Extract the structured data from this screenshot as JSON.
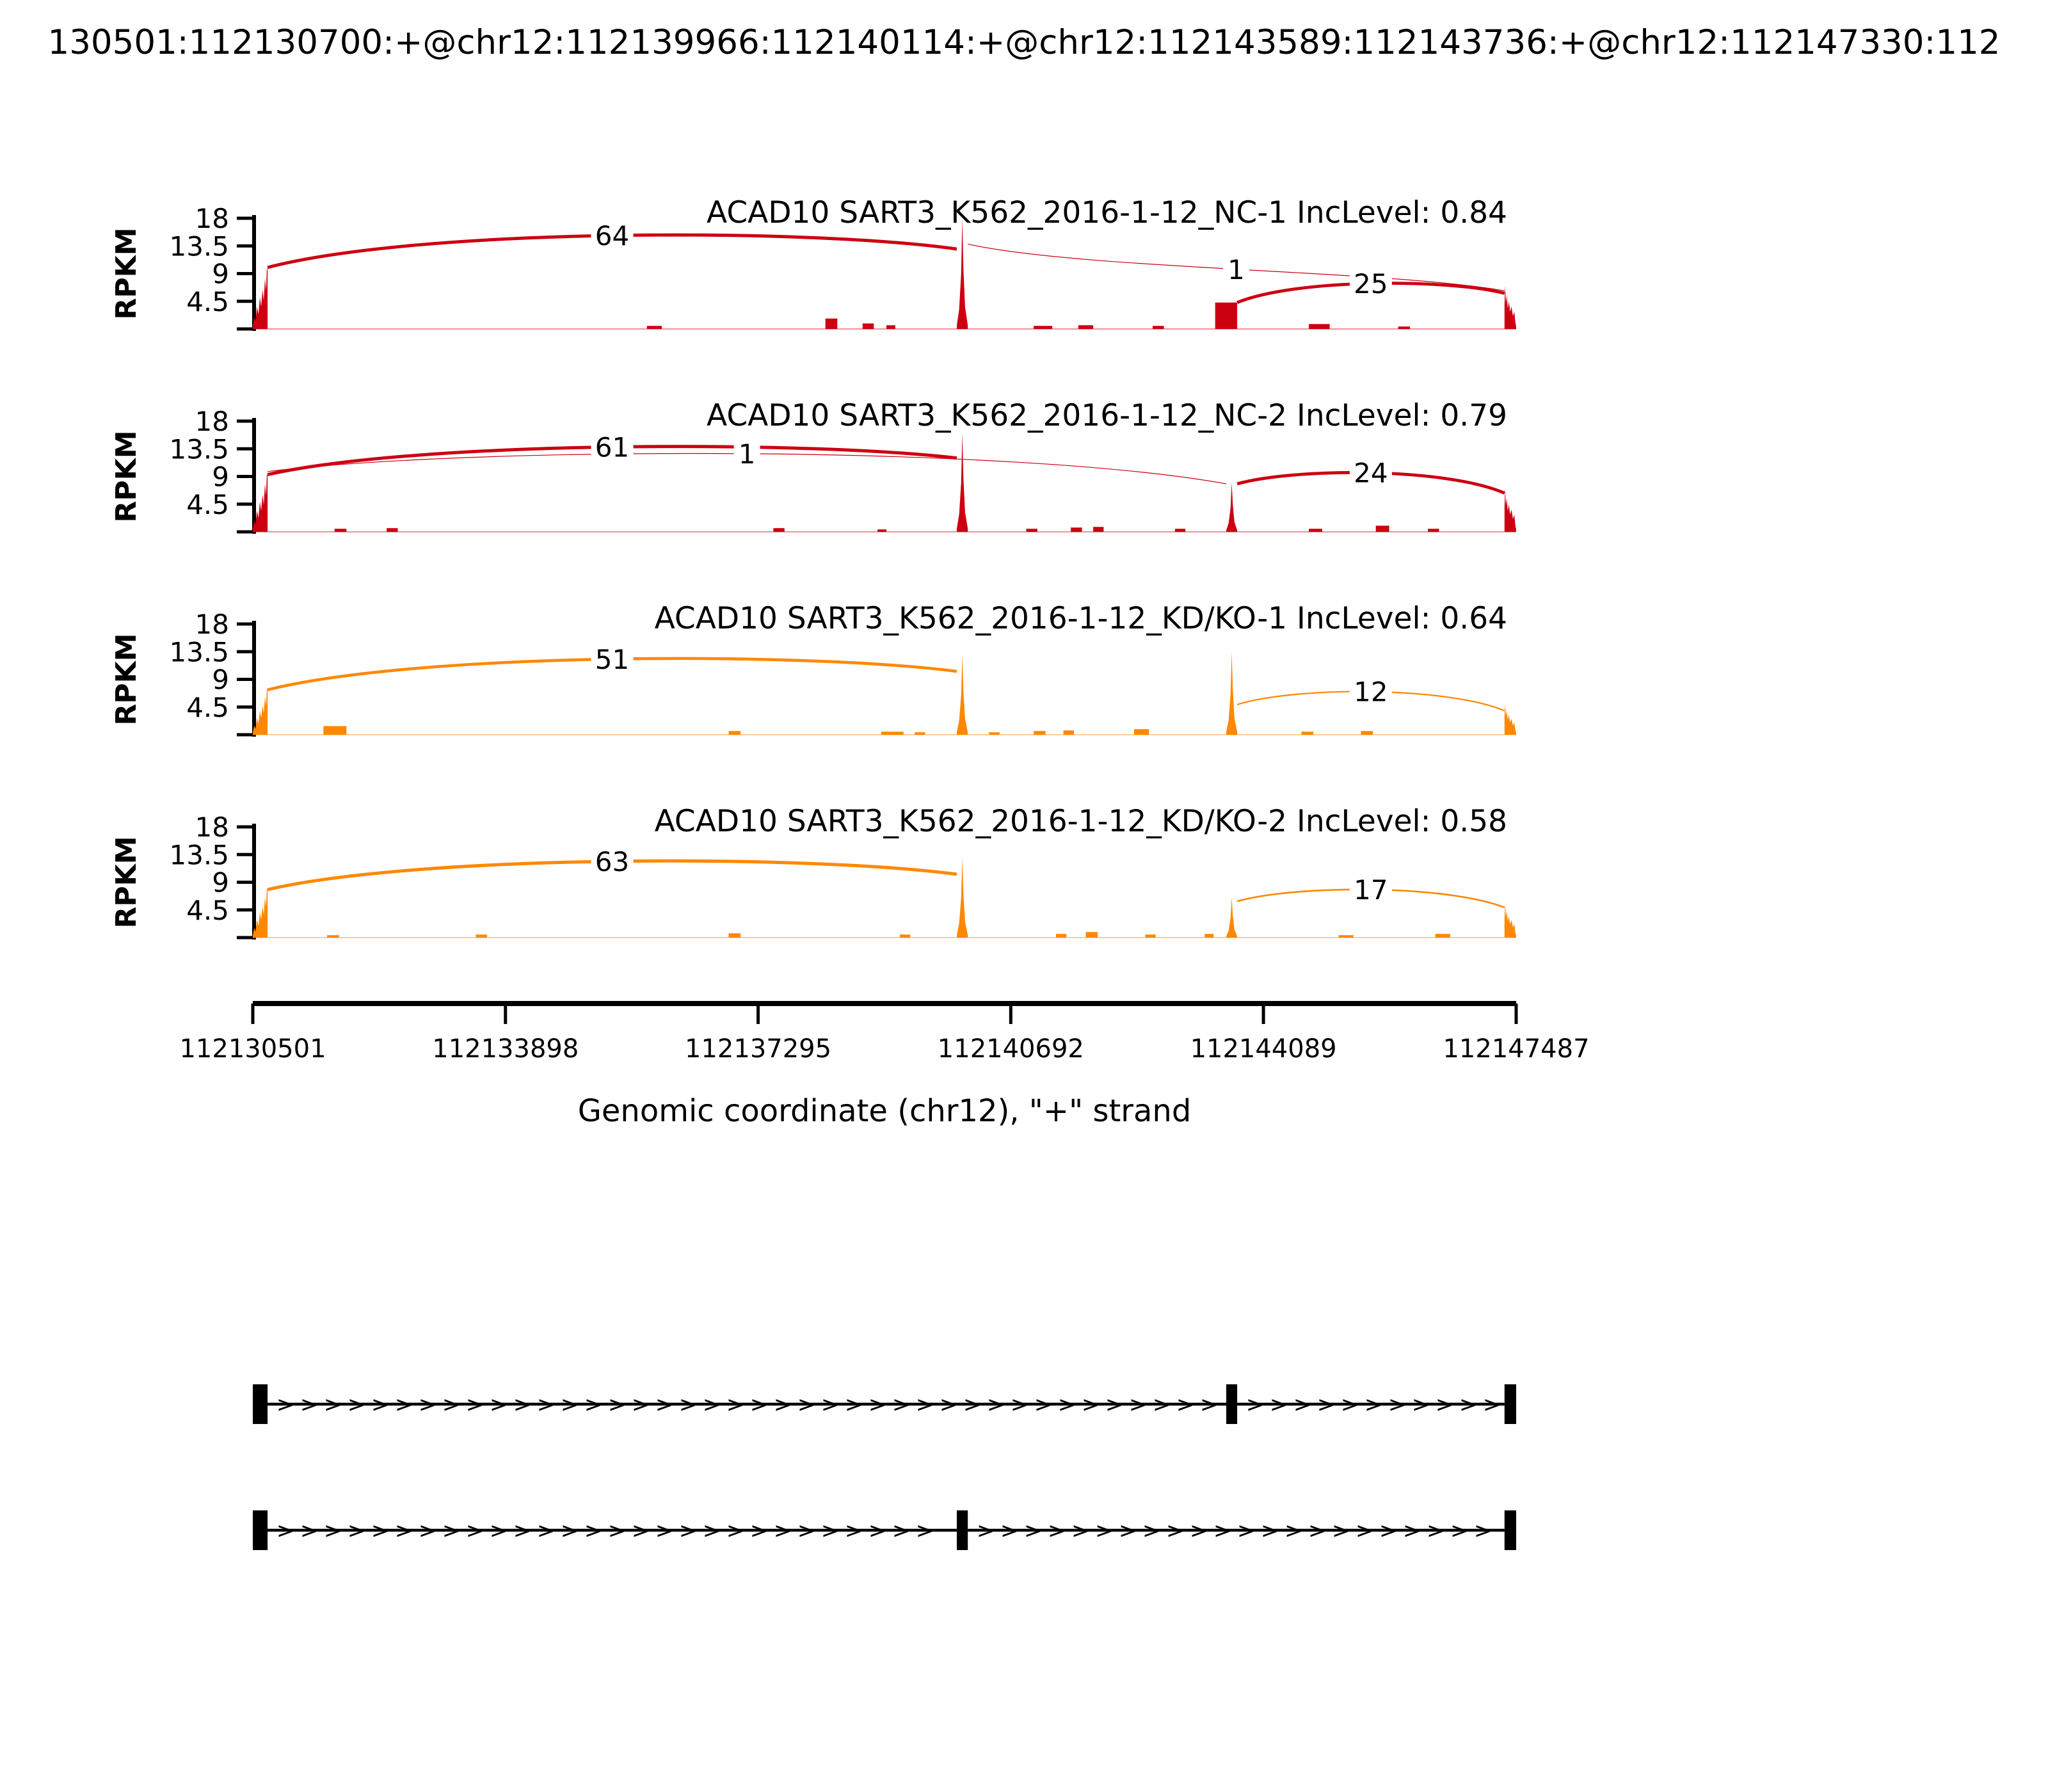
{
  "header": {
    "title": "130501:112130700:+@chr12:112139966:112140114:+@chr12:112143589:112143736:+@chr12:112147330:112"
  },
  "chart_data": {
    "type": "sashimi",
    "title": "130501:112130700:+@chr12:112139966:112140114:+@chr12:112143589:112143736:+@chr12:112147330:112",
    "xlabel": "Genomic coordinate (chr12), \"+\" strand",
    "ylabel": "RPKM",
    "ylim": [
      0,
      18
    ],
    "y_ticks": [
      4.5,
      9,
      13.5,
      18
    ],
    "x_ticks": [
      112130501,
      112133898,
      112137295,
      112140692,
      112144089,
      112147487
    ],
    "genome": {
      "chrom": "chr12",
      "strand": "+",
      "start": 112130501,
      "end": 112147487
    },
    "exons": {
      "upstream": [
        112130501,
        112130700
      ],
      "exon1": [
        112139966,
        112140114
      ],
      "exon2": [
        112143589,
        112143736
      ],
      "downstream": [
        112147330,
        112147487
      ]
    },
    "tracks": [
      {
        "title": "ACAD10 SART3_K562_2016-1-12_NC-1 IncLevel: 0.84",
        "sample": "SART3_K562_2016-1-12_NC-1",
        "inc_level": 0.84,
        "color": "#CC0011",
        "coverage": [
          {
            "start": 112130501,
            "end": 112130700,
            "h": 10,
            "kind": "rise"
          },
          {
            "start": 112135800,
            "end": 112136000,
            "h": 0.5,
            "kind": "noise"
          },
          {
            "start": 112138200,
            "end": 112138360,
            "h": 1.7,
            "kind": "noise"
          },
          {
            "start": 112138700,
            "end": 112138850,
            "h": 0.9,
            "kind": "noise"
          },
          {
            "start": 112139020,
            "end": 112139140,
            "h": 0.6,
            "kind": "noise"
          },
          {
            "start": 112139966,
            "end": 112140114,
            "h": 18,
            "kind": "spike"
          },
          {
            "start": 112141000,
            "end": 112141250,
            "h": 0.5,
            "kind": "noise"
          },
          {
            "start": 112141600,
            "end": 112141800,
            "h": 0.6,
            "kind": "noise"
          },
          {
            "start": 112142600,
            "end": 112142750,
            "h": 0.5,
            "kind": "noise"
          },
          {
            "start": 112143440,
            "end": 112143736,
            "h": 4.3,
            "kind": "bar"
          },
          {
            "start": 112144700,
            "end": 112144980,
            "h": 0.8,
            "kind": "noise"
          },
          {
            "start": 112145900,
            "end": 112146060,
            "h": 0.4,
            "kind": "noise"
          },
          {
            "start": 112147330,
            "end": 112147487,
            "h": 7,
            "kind": "fall"
          }
        ],
        "junctions": [
          {
            "from": "upstream",
            "to": "exon1",
            "count": 64,
            "h1": 10,
            "h2": 13,
            "apex": 15.2,
            "lw": 5
          },
          {
            "from": "exon1",
            "to": "downstream",
            "count": 1,
            "h1": 13.8,
            "h2": 6.2,
            "apex": 9.7,
            "lw": 1.2
          },
          {
            "from": "exon2",
            "to": "downstream",
            "count": 25,
            "h1": 4.3,
            "h2": 5.8,
            "apex": 7.4,
            "lw": 4.8
          }
        ]
      },
      {
        "title": "ACAD10 SART3_K562_2016-1-12_NC-2 IncLevel: 0.79",
        "sample": "SART3_K562_2016-1-12_NC-2",
        "inc_level": 0.79,
        "color": "#CC0011",
        "coverage": [
          {
            "start": 112130501,
            "end": 112130700,
            "h": 9.5,
            "kind": "rise"
          },
          {
            "start": 112131600,
            "end": 112131760,
            "h": 0.5,
            "kind": "noise"
          },
          {
            "start": 112132300,
            "end": 112132450,
            "h": 0.6,
            "kind": "noise"
          },
          {
            "start": 112137500,
            "end": 112137650,
            "h": 0.6,
            "kind": "noise"
          },
          {
            "start": 112138900,
            "end": 112139020,
            "h": 0.4,
            "kind": "noise"
          },
          {
            "start": 112139966,
            "end": 112140114,
            "h": 16,
            "kind": "spike"
          },
          {
            "start": 112140900,
            "end": 112141050,
            "h": 0.5,
            "kind": "noise"
          },
          {
            "start": 112141500,
            "end": 112141650,
            "h": 0.7,
            "kind": "noise"
          },
          {
            "start": 112141800,
            "end": 112141940,
            "h": 0.8,
            "kind": "noise"
          },
          {
            "start": 112142900,
            "end": 112143040,
            "h": 0.5,
            "kind": "noise"
          },
          {
            "start": 112143589,
            "end": 112143736,
            "h": 8,
            "kind": "spike"
          },
          {
            "start": 112144700,
            "end": 112144880,
            "h": 0.5,
            "kind": "noise"
          },
          {
            "start": 112145600,
            "end": 112145780,
            "h": 1.0,
            "kind": "noise"
          },
          {
            "start": 112146300,
            "end": 112146450,
            "h": 0.5,
            "kind": "noise"
          },
          {
            "start": 112147330,
            "end": 112147487,
            "h": 7,
            "kind": "fall"
          }
        ],
        "junctions": [
          {
            "from": "upstream",
            "to": "exon1",
            "count": 61,
            "h1": 9.3,
            "h2": 12,
            "apex": 13.8,
            "lw": 5
          },
          {
            "from": "upstream",
            "to": "exon2",
            "count": 1,
            "h1": 9.8,
            "h2": 7.8,
            "apex": 12.7,
            "lw": 1.2
          },
          {
            "from": "exon2",
            "to": "downstream",
            "count": 24,
            "h1": 7.8,
            "h2": 6.3,
            "apex": 9.6,
            "lw": 4.8
          }
        ]
      },
      {
        "title": "ACAD10 SART3_K562_2016-1-12_KD/KO-1 IncLevel: 0.64",
        "sample": "SART3_K562_2016-1-12_KD/KO-1",
        "inc_level": 0.64,
        "color": "#FF8800",
        "coverage": [
          {
            "start": 112130501,
            "end": 112130700,
            "h": 7.5,
            "kind": "rise"
          },
          {
            "start": 112131450,
            "end": 112131760,
            "h": 1.4,
            "kind": "noise"
          },
          {
            "start": 112136900,
            "end": 112137060,
            "h": 0.6,
            "kind": "noise"
          },
          {
            "start": 112138950,
            "end": 112139250,
            "h": 0.5,
            "kind": "noise"
          },
          {
            "start": 112139400,
            "end": 112139540,
            "h": 0.4,
            "kind": "noise"
          },
          {
            "start": 112139966,
            "end": 112140114,
            "h": 13,
            "kind": "spike"
          },
          {
            "start": 112140400,
            "end": 112140540,
            "h": 0.4,
            "kind": "noise"
          },
          {
            "start": 112141000,
            "end": 112141160,
            "h": 0.6,
            "kind": "noise"
          },
          {
            "start": 112141400,
            "end": 112141540,
            "h": 0.7,
            "kind": "noise"
          },
          {
            "start": 112142350,
            "end": 112142550,
            "h": 0.9,
            "kind": "noise"
          },
          {
            "start": 112143589,
            "end": 112143736,
            "h": 13.5,
            "kind": "spike"
          },
          {
            "start": 112144600,
            "end": 112144760,
            "h": 0.5,
            "kind": "noise"
          },
          {
            "start": 112145400,
            "end": 112145560,
            "h": 0.6,
            "kind": "noise"
          },
          {
            "start": 112147330,
            "end": 112147487,
            "h": 5,
            "kind": "fall"
          }
        ],
        "junctions": [
          {
            "from": "upstream",
            "to": "exon1",
            "count": 51,
            "h1": 7.3,
            "h2": 10.3,
            "apex": 12.3,
            "lw": 4.6
          },
          {
            "from": "exon2",
            "to": "downstream",
            "count": 12,
            "h1": 4.9,
            "h2": 3.9,
            "apex": 7.0,
            "lw": 2.2
          }
        ]
      },
      {
        "title": "ACAD10 SART3_K562_2016-1-12_KD/KO-2 IncLevel: 0.58",
        "sample": "SART3_K562_2016-1-12_KD/KO-2",
        "inc_level": 0.58,
        "color": "#FF8800",
        "coverage": [
          {
            "start": 112130501,
            "end": 112130700,
            "h": 8,
            "kind": "rise"
          },
          {
            "start": 112131500,
            "end": 112131660,
            "h": 0.4,
            "kind": "noise"
          },
          {
            "start": 112133500,
            "end": 112133650,
            "h": 0.5,
            "kind": "noise"
          },
          {
            "start": 112136900,
            "end": 112137060,
            "h": 0.7,
            "kind": "noise"
          },
          {
            "start": 112139200,
            "end": 112139340,
            "h": 0.5,
            "kind": "noise"
          },
          {
            "start": 112139966,
            "end": 112140114,
            "h": 13,
            "kind": "spike"
          },
          {
            "start": 112141300,
            "end": 112141440,
            "h": 0.6,
            "kind": "noise"
          },
          {
            "start": 112141700,
            "end": 112141860,
            "h": 0.9,
            "kind": "noise"
          },
          {
            "start": 112142500,
            "end": 112142640,
            "h": 0.5,
            "kind": "noise"
          },
          {
            "start": 112143300,
            "end": 112143420,
            "h": 0.6,
            "kind": "noise"
          },
          {
            "start": 112143589,
            "end": 112143736,
            "h": 6.5,
            "kind": "spike"
          },
          {
            "start": 112145100,
            "end": 112145300,
            "h": 0.4,
            "kind": "noise"
          },
          {
            "start": 112146400,
            "end": 112146600,
            "h": 0.6,
            "kind": "noise"
          },
          {
            "start": 112147330,
            "end": 112147487,
            "h": 5.5,
            "kind": "fall"
          }
        ],
        "junctions": [
          {
            "from": "upstream",
            "to": "exon1",
            "count": 63,
            "h1": 7.8,
            "h2": 10.3,
            "apex": 12.4,
            "lw": 5
          },
          {
            "from": "exon2",
            "to": "downstream",
            "count": 17,
            "h1": 5.9,
            "h2": 4.9,
            "apex": 7.8,
            "lw": 2.6
          }
        ]
      }
    ],
    "transcripts": [
      {
        "exons": [
          "upstream",
          "exon2",
          "downstream"
        ]
      },
      {
        "exons": [
          "upstream",
          "exon1",
          "downstream"
        ]
      }
    ]
  }
}
